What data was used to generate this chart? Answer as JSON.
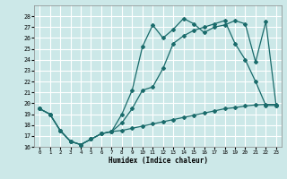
{
  "title": "",
  "xlabel": "Humidex (Indice chaleur)",
  "ylabel": "",
  "background_color": "#cce8e8",
  "grid_color": "#ffffff",
  "line_color": "#1a6b6b",
  "xlim": [
    -0.5,
    23.5
  ],
  "ylim": [
    16,
    29
  ],
  "xticks": [
    0,
    1,
    2,
    3,
    4,
    5,
    6,
    7,
    8,
    9,
    10,
    11,
    12,
    13,
    14,
    15,
    16,
    17,
    18,
    19,
    20,
    21,
    22,
    23
  ],
  "yticks": [
    16,
    17,
    18,
    19,
    20,
    21,
    22,
    23,
    24,
    25,
    26,
    27,
    28
  ],
  "line1_x": [
    0,
    1,
    2,
    3,
    4,
    5,
    6,
    7,
    8,
    9,
    10,
    11,
    12,
    13,
    14,
    15,
    16,
    17,
    18,
    19,
    20,
    21,
    22,
    23
  ],
  "line1_y": [
    19.5,
    19.0,
    17.5,
    16.5,
    16.2,
    16.7,
    17.2,
    17.4,
    19.0,
    21.2,
    25.2,
    27.2,
    26.0,
    26.8,
    27.8,
    27.3,
    26.5,
    27.0,
    27.2,
    27.6,
    27.3,
    23.8,
    27.5,
    19.8
  ],
  "line2_x": [
    0,
    1,
    2,
    3,
    4,
    5,
    6,
    7,
    8,
    9,
    10,
    11,
    12,
    13,
    14,
    15,
    16,
    17,
    18,
    19,
    20,
    21,
    22,
    23
  ],
  "line2_y": [
    19.5,
    19.0,
    17.5,
    16.5,
    16.2,
    16.7,
    17.2,
    17.4,
    18.2,
    19.5,
    21.2,
    21.5,
    23.2,
    25.5,
    26.2,
    26.7,
    27.0,
    27.3,
    27.6,
    25.5,
    24.0,
    22.0,
    19.8,
    19.8
  ],
  "line3_x": [
    0,
    1,
    2,
    3,
    4,
    5,
    6,
    7,
    8,
    9,
    10,
    11,
    12,
    13,
    14,
    15,
    16,
    17,
    18,
    19,
    20,
    21,
    22,
    23
  ],
  "line3_y": [
    19.5,
    19.0,
    17.5,
    16.5,
    16.2,
    16.7,
    17.2,
    17.4,
    17.5,
    17.7,
    17.9,
    18.1,
    18.3,
    18.5,
    18.7,
    18.9,
    19.1,
    19.3,
    19.5,
    19.6,
    19.75,
    19.85,
    19.9,
    19.9
  ]
}
